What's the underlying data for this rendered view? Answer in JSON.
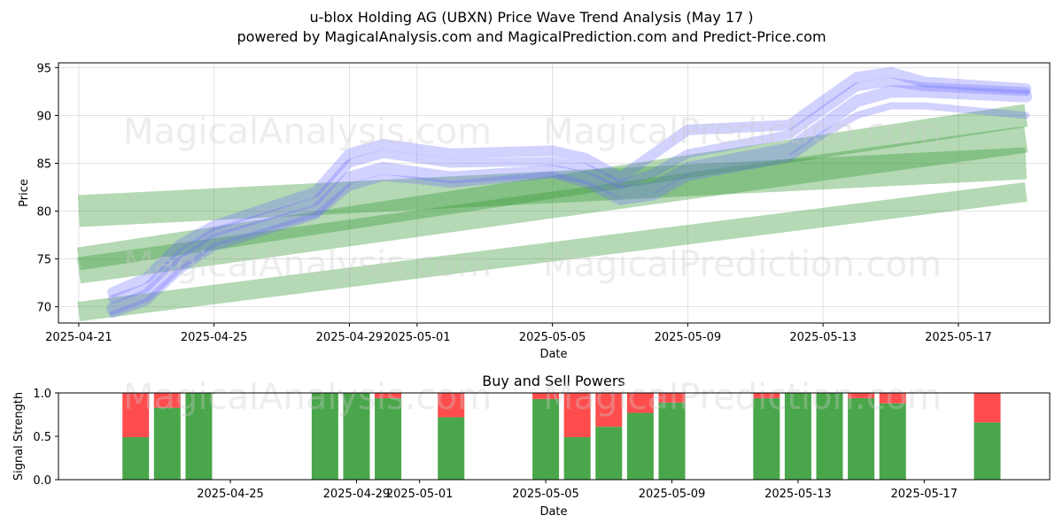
{
  "title": "u-blox Holding AG (UBXN) Price Wave Trend Analysis (May 17 )",
  "subtitle": "powered by MagicalAnalysis.com and MagicalPrediction.com and Predict-Price.com",
  "watermarks": [
    "MagicalAnalysis.com",
    "MagicalPrediction.com"
  ],
  "colors": {
    "buy": "#4aa64a",
    "sell": "#ff4d4d",
    "price_wave": "#6a6aff",
    "trend_band": "#3a9a3a"
  },
  "chart_data": [
    {
      "type": "area",
      "name": "price-wave-chart",
      "xlabel": "Date",
      "ylabel": "Price",
      "ylim": [
        68.3,
        95.5
      ],
      "grid": true,
      "x_tick_labels": [
        "2025-04-21",
        "2025-04-25",
        "2025-04-29",
        "2025-05-01",
        "2025-05-05",
        "2025-05-09",
        "2025-05-13",
        "2025-05-17"
      ],
      "y_tick_labels": [
        "70",
        "75",
        "80",
        "85",
        "90",
        "95"
      ],
      "x_range": [
        "2025-04-21",
        "2025-05-19"
      ],
      "wave_dates": [
        "2025-04-22",
        "2025-04-23",
        "2025-04-24",
        "2025-04-25",
        "2025-04-28",
        "2025-04-29",
        "2025-04-30",
        "2025-05-01",
        "2025-05-02",
        "2025-05-05",
        "2025-05-06",
        "2025-05-07",
        "2025-05-08",
        "2025-05-09",
        "2025-05-12",
        "2025-05-13",
        "2025-05-14",
        "2025-05-15",
        "2025-05-16",
        "2025-05-19"
      ],
      "wave_series": [
        {
          "values": [
            69.8,
            71.2,
            74.5,
            77.0,
            80.0,
            83.5,
            84.5,
            84.0,
            83.5,
            84.2,
            83.5,
            82.0,
            82.5,
            84.5,
            86.5,
            89.0,
            91.5,
            92.5,
            92.5,
            92.0
          ]
        },
        {
          "values": [
            70.8,
            72.0,
            75.5,
            77.8,
            81.0,
            85.0,
            86.0,
            85.5,
            85.0,
            85.2,
            84.5,
            82.8,
            84.0,
            86.0,
            88.0,
            90.5,
            93.0,
            93.5,
            93.0,
            92.5
          ]
        },
        {
          "values": [
            69.2,
            70.5,
            73.8,
            76.2,
            79.5,
            82.5,
            83.5,
            83.2,
            82.8,
            83.8,
            82.8,
            81.0,
            81.5,
            83.5,
            85.5,
            88.0,
            90.0,
            91.0,
            91.0,
            90.0
          ]
        },
        {
          "values": [
            71.5,
            73.0,
            76.5,
            78.5,
            82.0,
            86.0,
            87.0,
            86.5,
            86.0,
            86.3,
            85.5,
            83.5,
            86.0,
            88.5,
            89.0,
            91.5,
            94.0,
            94.5,
            93.5,
            92.8
          ]
        }
      ],
      "trend_bands": [
        {
          "start": [
            "2025-04-21",
            80.0
          ],
          "end": [
            "2025-05-19",
            85.0
          ]
        },
        {
          "start": [
            "2025-04-21",
            73.8
          ],
          "end": [
            "2025-05-19",
            87.5
          ]
        },
        {
          "start": [
            "2025-04-21",
            69.5
          ],
          "end": [
            "2025-05-19",
            82.0
          ]
        },
        {
          "start": [
            "2025-04-21",
            75.0
          ],
          "end": [
            "2025-05-19",
            90.0
          ]
        }
      ]
    },
    {
      "type": "bar",
      "name": "buy-sell-chart",
      "title": "Buy and Sell Powers",
      "xlabel": "Date",
      "ylabel": "Signal Strength",
      "ylim": [
        0,
        1
      ],
      "x_tick_labels": [
        "2025-04-25",
        "2025-04-29",
        "2025-05-01",
        "2025-05-05",
        "2025-05-09",
        "2025-05-13",
        "2025-05-17"
      ],
      "y_tick_labels": [
        "0.0",
        "0.5",
        "1.0"
      ],
      "x_range": [
        "2025-04-20",
        "2025-05-20"
      ],
      "categories": [
        "2025-04-22",
        "2025-04-23",
        "2025-04-24",
        "2025-04-28",
        "2025-04-29",
        "2025-04-30",
        "2025-05-02",
        "2025-05-05",
        "2025-05-06",
        "2025-05-07",
        "2025-05-08",
        "2025-05-09",
        "2025-05-12",
        "2025-05-13",
        "2025-05-14",
        "2025-05-15",
        "2025-05-16",
        "2025-05-19"
      ],
      "series": [
        {
          "key": "buy",
          "values": [
            0.49,
            0.83,
            1.0,
            1.0,
            1.0,
            0.94,
            0.72,
            0.93,
            0.49,
            0.61,
            0.77,
            0.89,
            0.94,
            1.0,
            1.0,
            0.94,
            0.88,
            0.66
          ]
        },
        {
          "key": "sell",
          "values": [
            0.51,
            0.17,
            0.0,
            0.0,
            0.0,
            0.06,
            0.28,
            0.07,
            0.51,
            0.39,
            0.23,
            0.11,
            0.06,
            0.0,
            0.0,
            0.06,
            0.12,
            0.34
          ]
        }
      ]
    }
  ]
}
